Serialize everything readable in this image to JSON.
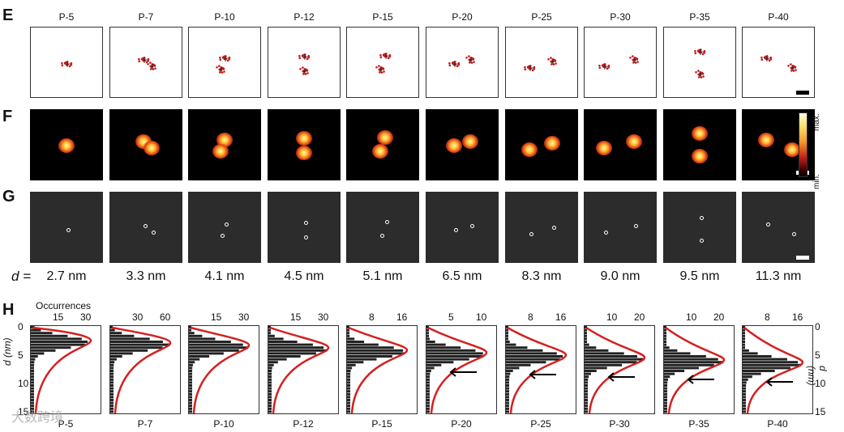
{
  "panels": {
    "E": "E",
    "F": "F",
    "G": "G",
    "H": "H"
  },
  "columns": [
    "P-5",
    "P-7",
    "P-10",
    "P-12",
    "P-15",
    "P-20",
    "P-25",
    "P-30",
    "P-35",
    "P-40"
  ],
  "distance_prefix": "d =",
  "distances": [
    "2.7 nm",
    "3.3 nm",
    "4.1 nm",
    "4.5 nm",
    "5.1 nm",
    "6.5 nm",
    "8.3 nm",
    "9.0 nm",
    "9.5 nm",
    "11.3 nm"
  ],
  "colorbar": {
    "max": "max.",
    "min": "min."
  },
  "histograms": {
    "top_axis_title": "Occurrences",
    "top_ticks": [
      [
        "15",
        "30"
      ],
      [
        "30",
        "60"
      ],
      [
        "15",
        "30"
      ],
      [
        "15",
        "30"
      ],
      [
        "8",
        "16"
      ],
      [
        "5",
        "10"
      ],
      [
        "8",
        "16"
      ],
      [
        "10",
        "20"
      ],
      [
        "10",
        "20"
      ],
      [
        "8",
        "16"
      ]
    ],
    "left_axis_label": "d (nm)",
    "left_ticks": [
      "0",
      "5",
      "10",
      "15"
    ],
    "right_axis_label": "d (nm)",
    "right_ticks": [
      "0",
      "5",
      "10",
      "15"
    ],
    "arrow_columns": [
      "P-20",
      "P-25",
      "P-30",
      "P-35",
      "P-40"
    ]
  },
  "watermark": "大数跨境"
}
